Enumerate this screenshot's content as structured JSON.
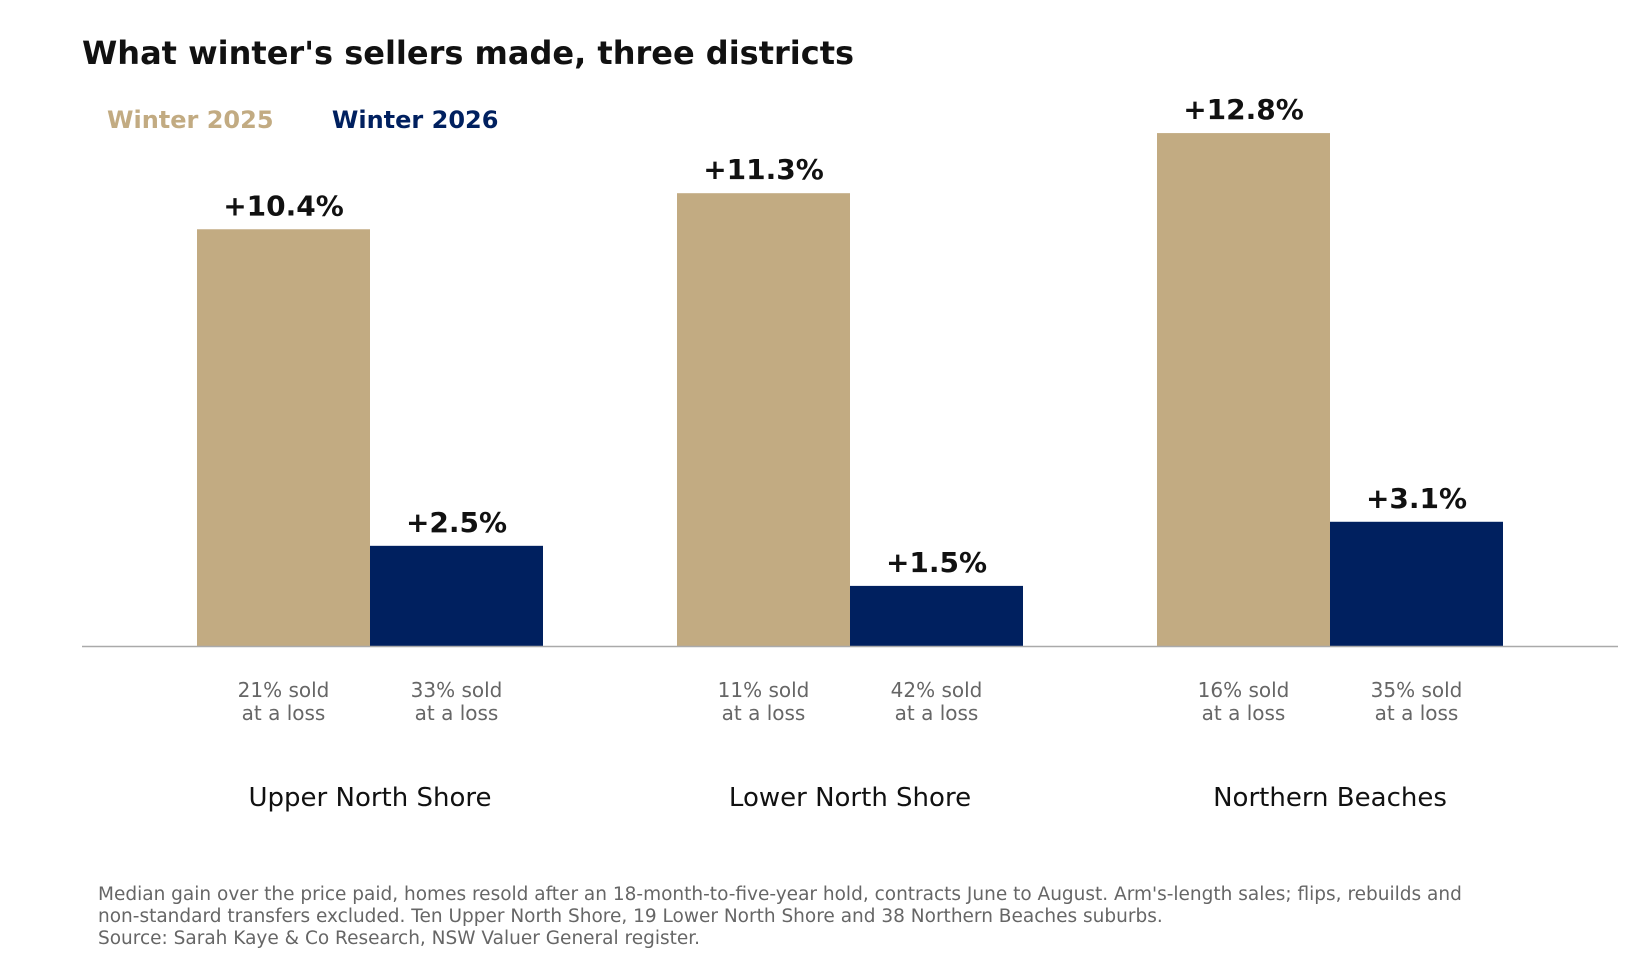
{
  "chart_data": {
    "type": "bar",
    "title": "What winter's sellers made, three districts",
    "categories": [
      "Upper North Shore",
      "Lower North Shore",
      "Northern Beaches"
    ],
    "series": [
      {
        "name": "Winter 2025",
        "color": "#C2AB82",
        "values": [
          10.4,
          11.3,
          12.8
        ],
        "value_labels": [
          "+10.4%",
          "+11.3%",
          "+12.8%"
        ],
        "notes": [
          [
            "21% sold",
            "at a loss"
          ],
          [
            "11% sold",
            "at a loss"
          ],
          [
            "16% sold",
            "at a loss"
          ]
        ]
      },
      {
        "name": "Winter 2026",
        "color": "#00205F",
        "values": [
          2.5,
          1.5,
          3.1
        ],
        "value_labels": [
          "+2.5%",
          "+1.5%",
          "+3.1%"
        ],
        "notes": [
          [
            "33% sold",
            "at a loss"
          ],
          [
            "42% sold",
            "at a loss"
          ],
          [
            "35% sold",
            "at a loss"
          ]
        ]
      }
    ],
    "ylim": [
      0,
      14
    ],
    "grid": false,
    "legend_position": "top-left",
    "axis_color": "#AAAAAA"
  },
  "footnote": {
    "lines": [
      "Median gain over the price paid, homes resold after an 18-month-to-five-year hold, contracts June to August. Arm's-length sales; flips, rebuilds and",
      "non-standard transfers excluded. Ten Upper North Shore, 19 Lower North Shore and 38 Northern Beaches suburbs.",
      "Source: Sarah Kaye & Co Research, NSW Valuer General register."
    ]
  }
}
